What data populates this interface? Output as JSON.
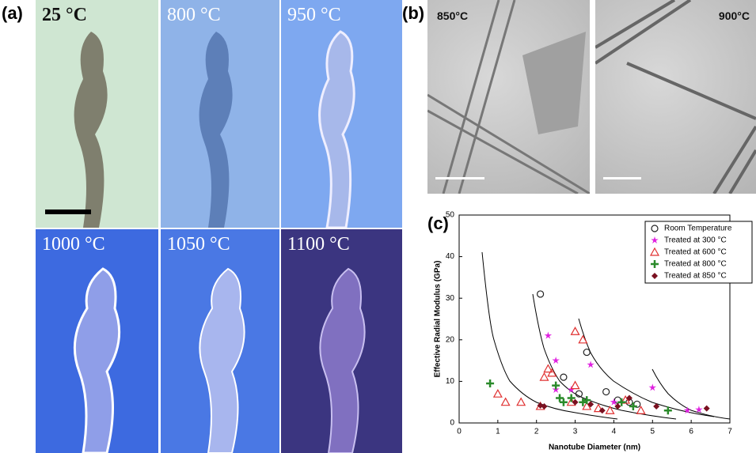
{
  "panels": {
    "a": {
      "label": "(a)",
      "images": [
        "25 °C",
        "800 °C",
        "950 °C",
        "1000 °C",
        "1050 °C",
        "1100 °C"
      ]
    },
    "b": {
      "label": "(b)",
      "images": [
        "850°C",
        "900°C"
      ]
    },
    "c": {
      "label": "(c)"
    }
  },
  "chart_data": {
    "type": "scatter",
    "x_label": "Nanotube Diameter (nm)",
    "y_label": "Effective Radial Modulus (GPa)",
    "xlim": [
      0,
      7
    ],
    "ylim": [
      0,
      50
    ],
    "xticks": [
      0,
      1,
      2,
      3,
      4,
      5,
      6,
      7
    ],
    "yticks": [
      0,
      10,
      20,
      30,
      40,
      50
    ],
    "legend": "upper right",
    "series": [
      {
        "name": "Room Temperature",
        "color": "#222222",
        "marker": "circle",
        "x": [
          2.1,
          2.7,
          3.3,
          3.1,
          3.8,
          4.1,
          4.4,
          4.6
        ],
        "values": [
          31,
          11,
          17,
          7,
          7.5,
          5.5,
          5,
          4.5
        ]
      },
      {
        "name": "Treated at 300 °C",
        "color": "#e020e0",
        "marker": "star",
        "x": [
          2.3,
          2.5,
          2.9,
          3.4,
          2.5,
          4.0,
          5.0,
          5.9,
          6.2
        ],
        "values": [
          21,
          15,
          8,
          14,
          8,
          5,
          8.5,
          3,
          3.2
        ]
      },
      {
        "name": "Treated at 600 °C",
        "color": "#e03030",
        "marker": "triangle",
        "x": [
          1.0,
          1.2,
          1.6,
          2.1,
          2.2,
          2.3,
          2.4,
          3.0,
          3.2,
          2.9,
          3.0,
          3.3,
          3.6,
          3.9,
          4.3,
          4.7
        ],
        "values": [
          7,
          5,
          5,
          4,
          11,
          13,
          12,
          22,
          20,
          5,
          9,
          4,
          3.5,
          3,
          5.5,
          3
        ]
      },
      {
        "name": "Treated at 800 °C",
        "color": "#2a8a2a",
        "marker": "plus",
        "x": [
          0.8,
          2.5,
          2.6,
          2.7,
          2.9,
          3.2,
          3.3,
          4.2,
          4.5,
          5.4
        ],
        "values": [
          9.5,
          9,
          6,
          5,
          6,
          5,
          5.5,
          5,
          4,
          3
        ]
      },
      {
        "name": "Treated at 850 °C",
        "color": "#7a1020",
        "marker": "diamond",
        "x": [
          2.1,
          2.2,
          3.0,
          3.4,
          3.7,
          4.1,
          4.4,
          5.1,
          6.4
        ],
        "values": [
          4.2,
          4,
          5,
          4.5,
          3,
          4,
          6,
          4,
          3.5
        ]
      }
    ]
  }
}
